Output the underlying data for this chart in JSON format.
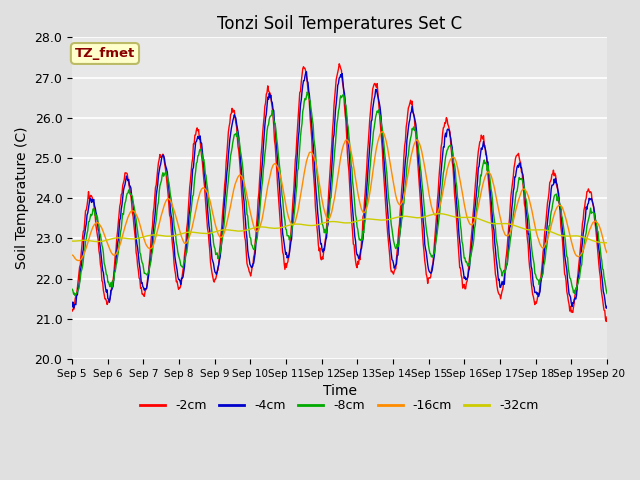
{
  "title": "Tonzi Soil Temperatures Set C",
  "xlabel": "Time",
  "ylabel": "Soil Temperature (C)",
  "ylim": [
    20.0,
    28.0
  ],
  "yticks": [
    20.0,
    21.0,
    22.0,
    23.0,
    24.0,
    25.0,
    26.0,
    27.0,
    28.0
  ],
  "xtick_labels": [
    "Sep 5",
    "Sep 6",
    "Sep 7",
    "Sep 8",
    "Sep 9",
    "Sep 10",
    "Sep 11",
    "Sep 12",
    "Sep 13",
    "Sep 14",
    "Sep 15",
    "Sep 16",
    "Sep 17",
    "Sep 18",
    "Sep 19",
    "Sep 20"
  ],
  "annotation_text": "TZ_fmet",
  "annotation_color": "#8B0000",
  "annotation_bg": "#FFFFCC",
  "annotation_border": "#BBBB66",
  "series_colors": [
    "#FF0000",
    "#0000CC",
    "#00AA00",
    "#FF8C00",
    "#CCCC00"
  ],
  "series_labels": [
    "-2cm",
    "-4cm",
    "-8cm",
    "-16cm",
    "-32cm"
  ],
  "bg_color": "#E0E0E0",
  "plot_bg": "#E8E8E8",
  "grid_color": "#FFFFFF",
  "n_days": 15,
  "samples_per_day": 48
}
